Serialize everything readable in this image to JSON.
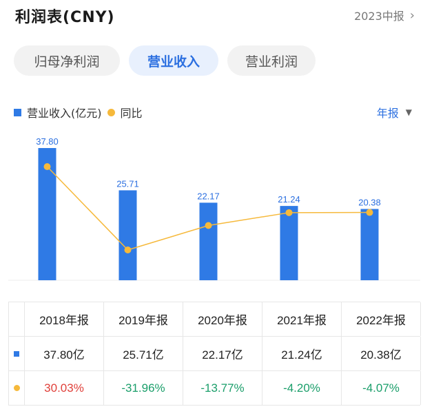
{
  "header": {
    "title": "利润表(CNY)",
    "period": "2023中报",
    "period_icon": "chevron-right-icon"
  },
  "tabs": [
    {
      "label": "归母净利润",
      "active": false
    },
    {
      "label": "营业收入",
      "active": true
    },
    {
      "label": "营业利润",
      "active": false
    }
  ],
  "legend": {
    "bar_label": "营业收入(亿元)",
    "line_label": "同比"
  },
  "frequency": {
    "label": "年报",
    "icon": "caret-down-icon"
  },
  "colors": {
    "bar": "#2f7ae5",
    "line": "#f6b93b",
    "positive": "#e0403a",
    "negative": "#1a9e6a",
    "accent": "#2b6fe0"
  },
  "chart_data": {
    "type": "bar",
    "categories": [
      "2018年报",
      "2019年报",
      "2020年报",
      "2021年报",
      "2022年报"
    ],
    "series": [
      {
        "name": "营业收入(亿元)",
        "type": "bar",
        "values": [
          37.8,
          25.71,
          22.17,
          21.24,
          20.38
        ],
        "labels": [
          "37.80",
          "25.71",
          "22.17",
          "21.24",
          "20.38"
        ]
      },
      {
        "name": "同比",
        "type": "line",
        "values": [
          30.03,
          -31.96,
          -13.77,
          -4.2,
          -4.07
        ]
      }
    ],
    "grid": false,
    "legend_position": "top-left"
  },
  "table": {
    "headers": [
      "2018年报",
      "2019年报",
      "2020年报",
      "2021年报",
      "2022年报"
    ],
    "revenue_row": [
      "37.80亿",
      "25.71亿",
      "22.17亿",
      "21.24亿",
      "20.38亿"
    ],
    "yoy_row": [
      "30.03%",
      "-31.96%",
      "-13.77%",
      "-4.20%",
      "-4.07%"
    ]
  }
}
